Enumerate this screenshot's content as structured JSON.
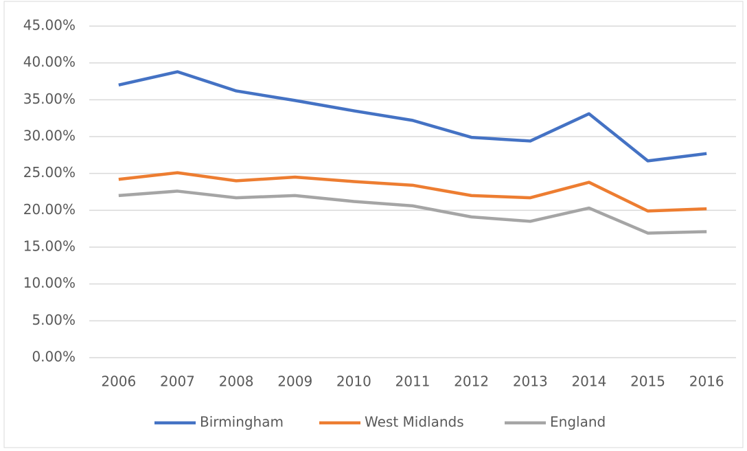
{
  "chart_data": {
    "type": "line",
    "categories": [
      "2006",
      "2007",
      "2008",
      "2009",
      "2010",
      "2011",
      "2012",
      "2013",
      "2014",
      "2015",
      "2016"
    ],
    "series": [
      {
        "name": "Birmingham",
        "color": "#4472c4",
        "values": [
          37.0,
          38.8,
          36.2,
          34.9,
          33.5,
          32.2,
          29.9,
          29.4,
          33.1,
          26.7,
          27.7
        ]
      },
      {
        "name": "West Midlands",
        "color": "#ed7d31",
        "values": [
          24.2,
          25.1,
          24.0,
          24.5,
          23.9,
          23.4,
          22.0,
          21.7,
          23.8,
          19.9,
          20.2
        ]
      },
      {
        "name": "England",
        "color": "#a5a5a5",
        "values": [
          22.0,
          22.6,
          21.7,
          22.0,
          21.2,
          20.6,
          19.1,
          18.5,
          20.3,
          16.9,
          17.1
        ]
      }
    ],
    "ylim": [
      0,
      45
    ],
    "yticks": [
      {
        "value": 0,
        "label": "0.00%"
      },
      {
        "value": 5,
        "label": "5.00%"
      },
      {
        "value": 10,
        "label": "10.00%"
      },
      {
        "value": 15,
        "label": "15.00%"
      },
      {
        "value": 20,
        "label": "20.00%"
      },
      {
        "value": 25,
        "label": "25.00%"
      },
      {
        "value": 30,
        "label": "30.00%"
      },
      {
        "value": 35,
        "label": "35.00%"
      },
      {
        "value": 40,
        "label": "40.00%"
      },
      {
        "value": 45,
        "label": "45.00%"
      }
    ],
    "grid": true,
    "legend": "bottom"
  }
}
